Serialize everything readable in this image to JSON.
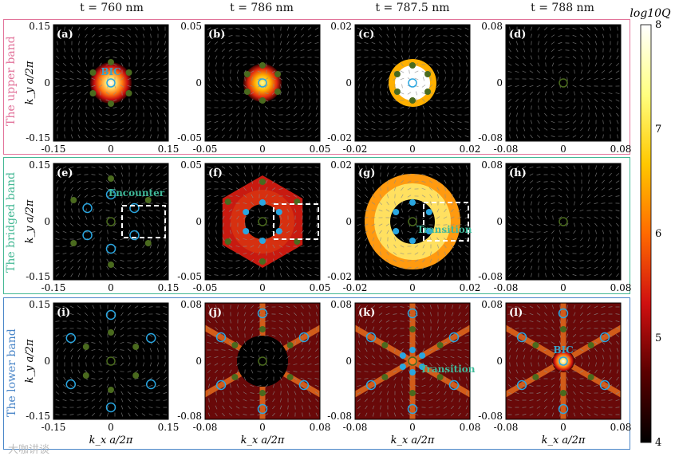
{
  "column_headers": [
    "t = 760 nm",
    "t = 786 nm",
    "t = 787.5 nm",
    "t = 788 nm"
  ],
  "band_labels": {
    "upper": "The upper band",
    "bridged": "The bridged band",
    "lower": "The lower  band"
  },
  "axis_labels": {
    "y": "k_y a/2π",
    "x": "k_x a/2π"
  },
  "panels": [
    {
      "label": "(a)",
      "range": [
        "-0.15",
        "0",
        "0.15"
      ],
      "pattern": "bic_red",
      "annotation": "BIC",
      "row": 0,
      "col": 0
    },
    {
      "label": "(b)",
      "range": [
        "-0.05",
        "0",
        "0.05"
      ],
      "pattern": "bic_yellow",
      "annotation": "",
      "row": 0,
      "col": 1
    },
    {
      "label": "(c)",
      "range": [
        "-0.02",
        "0",
        "0.02"
      ],
      "pattern": "bic_white",
      "annotation": "",
      "row": 0,
      "col": 2
    },
    {
      "label": "(d)",
      "range": [
        "-0.08",
        "0",
        "0.08"
      ],
      "pattern": "dark",
      "annotation": "",
      "row": 0,
      "col": 3
    },
    {
      "label": "(e)",
      "range": [
        "-0.15",
        "0",
        "0.15"
      ],
      "pattern": "encounter",
      "annotation": "Encounter",
      "row": 1,
      "col": 0
    },
    {
      "label": "(f)",
      "range": [
        "-0.05",
        "0",
        "0.05"
      ],
      "pattern": "hexring",
      "annotation": "",
      "row": 1,
      "col": 1
    },
    {
      "label": "(g)",
      "range": [
        "-0.02",
        "0",
        "0.02"
      ],
      "pattern": "annulus",
      "annotation": "Transition",
      "row": 1,
      "col": 2
    },
    {
      "label": "(h)",
      "range": [
        "-0.08",
        "0",
        "0.08"
      ],
      "pattern": "dark",
      "annotation": "",
      "row": 1,
      "col": 3
    },
    {
      "label": "(i)",
      "range": [
        "-0.15",
        "0",
        "0.15"
      ],
      "pattern": "lower_ring",
      "annotation": "",
      "row": 2,
      "col": 0
    },
    {
      "label": "(j)",
      "range": [
        "-0.08",
        "0",
        "0.08"
      ],
      "pattern": "star_dark",
      "annotation": "",
      "row": 2,
      "col": 1
    },
    {
      "label": "(k)",
      "range": [
        "-0.08",
        "0",
        "0.08"
      ],
      "pattern": "star_transition",
      "annotation": "Transition",
      "row": 2,
      "col": 2
    },
    {
      "label": "(l)",
      "range": [
        "-0.08",
        "0",
        "0.08"
      ],
      "pattern": "star_bic",
      "annotation": "BIC",
      "row": 2,
      "col": 3
    }
  ],
  "colorbar": {
    "title": "log10Q",
    "min": 4,
    "max": 8,
    "ticks": [
      "8",
      "7",
      "6",
      "5",
      "4"
    ],
    "colors": [
      "#000000",
      "#5a0000",
      "#d01010",
      "#ff6a00",
      "#ffc800",
      "#ffff80",
      "#ffffff"
    ]
  },
  "marker_colors": {
    "green": "#4a6a1e",
    "blue": "#2aa6e0",
    "annotation": "#3aa3c8",
    "transition": "#3fb99a",
    "dashed": "#ffffff"
  },
  "watermark": "大咖讲谈"
}
